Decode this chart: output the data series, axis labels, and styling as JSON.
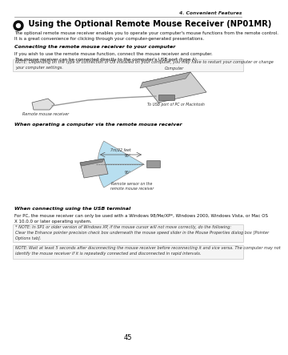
{
  "page_num": "45",
  "header_right": "4. Convenient Features",
  "title": " Using the Optional Remote Mouse Receiver (NP01MR)",
  "intro": "The optional remote mouse receiver enables you to operate your computer's mouse functions from the remote control.\nIt is a great convenience for clicking through your computer-generated presentations.",
  "section1_heading": "Connecting the remote mouse receiver to your computer",
  "section1_body": "If you wish to use the remote mouse function, connect the mouse receiver and computer.\nThe mouse receiver can be connected directly to the computer's USB port (type A).",
  "note1": "NOTE: Depending on the type of connection or OS installed on your computer, you may have to restart your computer or change\nyour computer settings.",
  "diagram1_label_left": "Remote mouse receiver",
  "diagram1_label_right": "Computer",
  "diagram1_label_port": "To USB port of PC or Macintosh",
  "section2_heading": "When operating a computer via the remote mouse receiver",
  "diagram2_label_top": "7m/22 feet",
  "diagram2_label_angle1": "90°",
  "diagram2_label_angle2": "90°",
  "diagram2_label_bottom": "Remote sensor on the\nremote mouse receiver",
  "section3_heading": "When connecting using the USB terminal",
  "section3_body": "For PC, the mouse receiver can only be used with a Windows 98/Me/XP*, Windows 2000, Windows Vista, or Mac OS\nX 10.0.0 or later operating system.",
  "note2": "* NOTE: In SP1 or older version of Windows XP, if the mouse cursor will not move correctly, do the following:\nClear the Enhance pointer precision check box underneath the mouse speed slider in the Mouse Properties dialog box [Pointer\nOptions tab].",
  "note3": "NOTE: Wait at least 5 seconds after disconnecting the mouse receiver before reconnecting it and vice versa. The computer may not\nidentify the mouse receiver if it is repeatedly connected and disconnected in rapid intervals.",
  "bg_color": "#ffffff",
  "text_color": "#000000",
  "line_color": "#999999",
  "note_border": "#bbbbbb"
}
